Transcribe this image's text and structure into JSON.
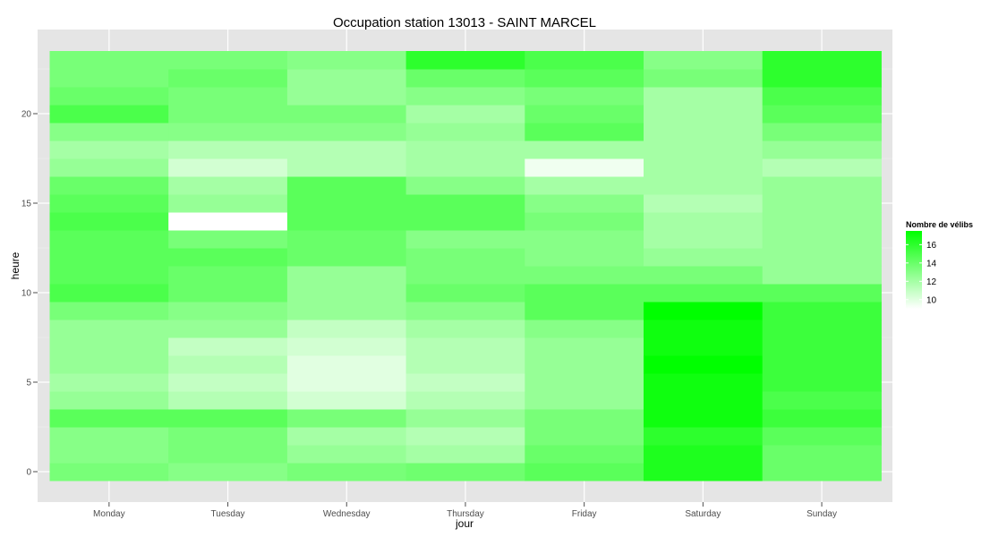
{
  "chart_data": {
    "type": "heatmap",
    "title": "Occupation station 13013 - SAINT MARCEL",
    "xlabel": "jour",
    "ylabel": "heure",
    "categories": [
      "Monday",
      "Tuesday",
      "Wednesday",
      "Thursday",
      "Friday",
      "Saturday",
      "Sunday"
    ],
    "y": [
      0,
      1,
      2,
      3,
      4,
      5,
      6,
      7,
      8,
      9,
      10,
      11,
      12,
      13,
      14,
      15,
      16,
      17,
      18,
      19,
      20,
      21,
      22,
      23
    ],
    "yticks": [
      0,
      5,
      10,
      15,
      20
    ],
    "ylim": [
      -0.5,
      23.5
    ],
    "values": [
      [
        13.5,
        13.0,
        13.5,
        13.8,
        14.5,
        16.5,
        14.0
      ],
      [
        13.0,
        13.5,
        12.5,
        12.0,
        14.0,
        16.5,
        14.0
      ],
      [
        13.0,
        13.5,
        12.0,
        11.5,
        13.5,
        16.0,
        14.5
      ],
      [
        14.5,
        14.5,
        13.5,
        12.5,
        13.5,
        17.0,
        15.5
      ],
      [
        12.5,
        11.5,
        10.5,
        11.5,
        12.5,
        17.0,
        15.0
      ],
      [
        12.0,
        11.0,
        10.0,
        11.0,
        12.5,
        17.0,
        15.5
      ],
      [
        12.5,
        11.5,
        10.0,
        11.5,
        12.5,
        17.5,
        15.5
      ],
      [
        12.5,
        11.0,
        10.5,
        11.5,
        12.5,
        17.0,
        15.5
      ],
      [
        12.5,
        12.5,
        11.0,
        12.0,
        13.0,
        17.0,
        15.5
      ],
      [
        13.5,
        13.0,
        12.5,
        13.0,
        14.5,
        17.5,
        15.5
      ],
      [
        15.0,
        14.0,
        12.5,
        14.0,
        14.5,
        14.5,
        14.5
      ],
      [
        14.5,
        14.0,
        12.5,
        13.5,
        13.5,
        13.5,
        12.5
      ],
      [
        14.5,
        14.5,
        14.0,
        13.5,
        13.0,
        12.5,
        12.5
      ],
      [
        14.5,
        13.5,
        14.0,
        13.0,
        13.0,
        12.0,
        12.5
      ],
      [
        15.0,
        9.0,
        14.5,
        14.5,
        13.5,
        12.0,
        12.5
      ],
      [
        14.5,
        12.5,
        14.5,
        14.5,
        13.0,
        11.5,
        12.5
      ],
      [
        14.0,
        12.0,
        14.5,
        13.0,
        12.0,
        12.0,
        12.5
      ],
      [
        12.5,
        10.5,
        11.5,
        12.0,
        9.5,
        12.0,
        11.5
      ],
      [
        12.0,
        11.5,
        11.5,
        12.0,
        12.0,
        12.0,
        12.5
      ],
      [
        13.0,
        13.0,
        13.0,
        12.5,
        14.5,
        12.0,
        13.5
      ],
      [
        15.0,
        13.5,
        13.5,
        12.0,
        14.0,
        12.0,
        14.5
      ],
      [
        14.0,
        13.5,
        12.5,
        13.0,
        13.5,
        12.0,
        15.0
      ],
      [
        13.5,
        14.0,
        12.5,
        14.0,
        14.5,
        13.5,
        16.0
      ],
      [
        13.5,
        13.5,
        13.0,
        16.0,
        15.0,
        13.0,
        16.0
      ]
    ],
    "legend": {
      "title": "Nombre de vélibs",
      "ticks": [
        10,
        12,
        14,
        16
      ],
      "range": [
        9,
        17.5
      ],
      "low_color": "#ffffff",
      "high_color": "#00ff00",
      "position": "right"
    },
    "grid": true,
    "panel_background": "#e5e5e5"
  }
}
